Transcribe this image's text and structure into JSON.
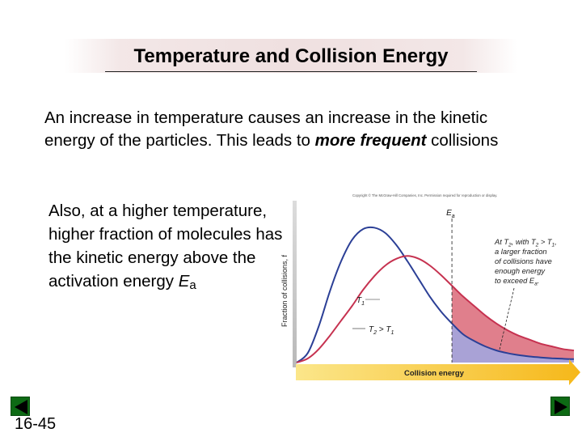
{
  "slide": {
    "title": "Temperature and Collision Energy",
    "paragraph1_parts": [
      "An increase in temperature causes an increase in the kinetic energy of the particles. This leads to ",
      "more frequent",
      " collisions"
    ],
    "paragraph2_main": "Also, at a higher temperature, higher fraction of molecules has the kinetic energy above the activation energy ",
    "paragraph2_symbol": "E",
    "paragraph2_subscript": "a",
    "slide_number": "16-45"
  },
  "navigation": {
    "prev_icon": "triangle-left-icon",
    "next_icon": "triangle-right-icon",
    "button_color": "#0d6a14"
  },
  "chart_data": {
    "type": "area",
    "copyright": "Copyright © The McGraw-Hill Companies, Inc. Permission required for reproduction or display.",
    "xlabel": "Collision energy",
    "ylabel": "Fraction of collisions, f",
    "threshold_label": "Ea",
    "threshold_x": 0.56,
    "series": [
      {
        "name": "T1",
        "color": "#2b3f96",
        "shade_color": "#a9a2d6",
        "x": [
          0.0,
          0.04,
          0.08,
          0.12,
          0.16,
          0.2,
          0.24,
          0.28,
          0.32,
          0.36,
          0.4,
          0.44,
          0.48,
          0.52,
          0.56,
          0.6,
          0.64,
          0.68,
          0.72,
          0.76,
          0.8,
          0.84,
          0.88,
          0.92,
          0.96,
          1.0
        ],
        "y": [
          0.0,
          0.07,
          0.27,
          0.53,
          0.75,
          0.91,
          0.99,
          1.0,
          0.96,
          0.87,
          0.75,
          0.62,
          0.49,
          0.38,
          0.29,
          0.21,
          0.16,
          0.12,
          0.09,
          0.07,
          0.055,
          0.045,
          0.038,
          0.032,
          0.028,
          0.025
        ]
      },
      {
        "name": "T2 > T1",
        "color": "#c63250",
        "shade_color": "#e07f8c",
        "x": [
          0.0,
          0.04,
          0.08,
          0.12,
          0.16,
          0.2,
          0.24,
          0.28,
          0.32,
          0.36,
          0.4,
          0.44,
          0.48,
          0.52,
          0.56,
          0.6,
          0.64,
          0.68,
          0.72,
          0.76,
          0.8,
          0.84,
          0.88,
          0.92,
          0.96,
          1.0
        ],
        "y": [
          0.0,
          0.03,
          0.1,
          0.2,
          0.31,
          0.42,
          0.54,
          0.64,
          0.72,
          0.77,
          0.79,
          0.77,
          0.72,
          0.65,
          0.57,
          0.49,
          0.42,
          0.35,
          0.29,
          0.24,
          0.2,
          0.17,
          0.14,
          0.12,
          0.1,
          0.09
        ]
      }
    ],
    "series_labels": {
      "t1": "T",
      "t1_sub": "1",
      "t2": "T",
      "t2_sub": "2",
      "t2_rest": " > T",
      "t2_rest_sub": "1"
    },
    "annotation_lines": [
      [
        "At T",
        "2",
        ", with T",
        "2",
        " > T",
        "1",
        ","
      ],
      [
        "a larger fraction",
        "",
        "",
        "",
        "",
        "",
        ""
      ],
      [
        "of collisions have",
        "",
        "",
        "",
        "",
        "",
        ""
      ],
      [
        "enough energy",
        "",
        "",
        "",
        "",
        "",
        ""
      ],
      [
        "to exceed E",
        "a",
        ".",
        "",
        "",
        "",
        ""
      ]
    ],
    "ylim": [
      0,
      1.2
    ],
    "xlim": [
      0,
      1
    ],
    "grid": false
  }
}
